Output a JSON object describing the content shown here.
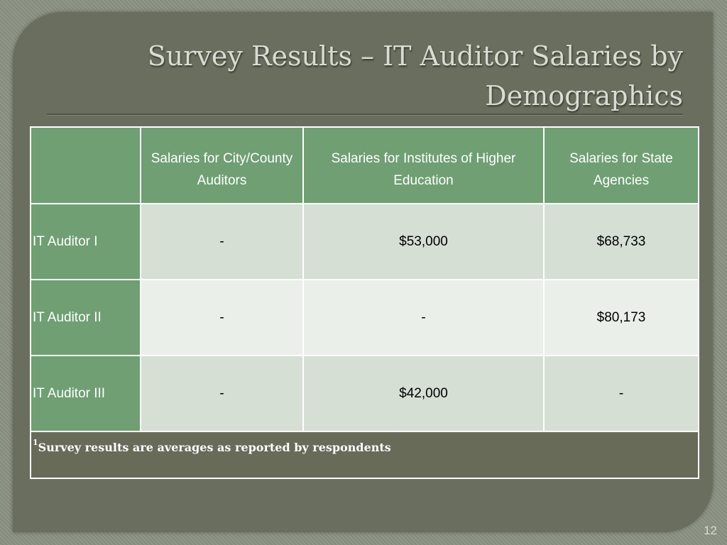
{
  "slide": {
    "title": "Survey Results – IT Auditor Salaries by Demographics",
    "page_number": "12"
  },
  "table": {
    "headers": [
      "",
      "Salaries for City/County Auditors",
      "Salaries for Institutes of Higher Education",
      "Salaries for State Agencies"
    ],
    "rows": [
      {
        "label": "IT Auditor I",
        "values": [
          "-",
          "$53,000",
          "$68,733"
        ]
      },
      {
        "label": "IT Auditor II",
        "values": [
          "-",
          "-",
          "$80,173"
        ]
      },
      {
        "label": "IT Auditor III",
        "values": [
          "-",
          "$42,000",
          "-"
        ]
      }
    ],
    "footnote_mark": "1",
    "footnote": "Survey results are averages as reported by respondents"
  },
  "colors": {
    "header_green": "#6f9f73",
    "slide_background": "#696e5e",
    "row_light": "#d5dfd4",
    "row_lighter": "#ebefea"
  }
}
